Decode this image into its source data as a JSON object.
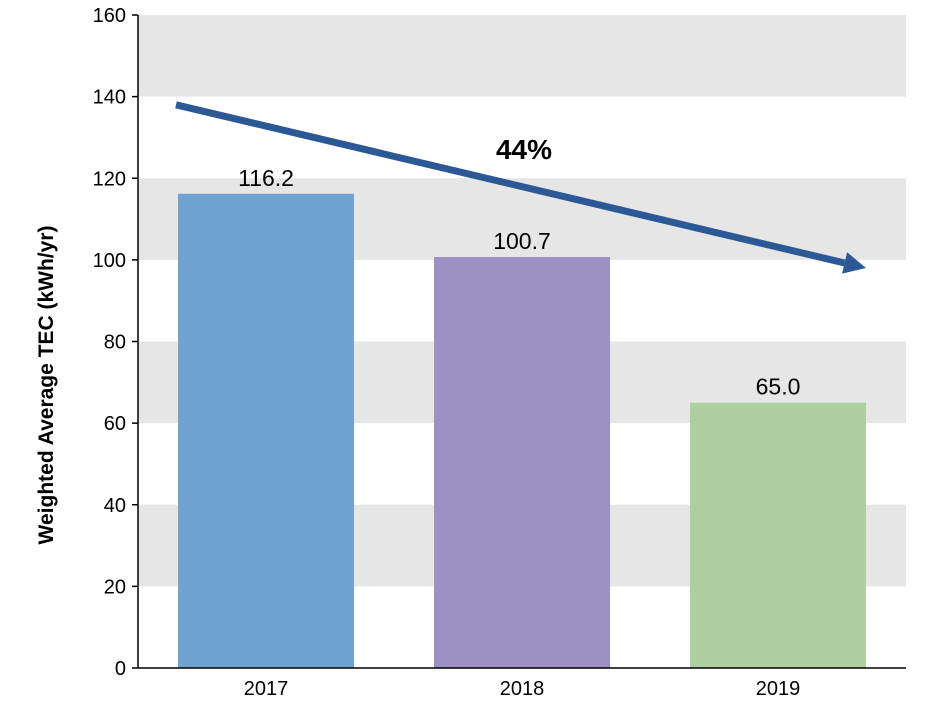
{
  "chart_data": {
    "type": "bar",
    "title": "",
    "xlabel": "",
    "ylabel": "Weighted Average TEC (kWh/yr)",
    "categories": [
      "2017",
      "2018",
      "2019"
    ],
    "values": [
      116.2,
      100.7,
      65.0
    ],
    "value_labels": [
      "116.2",
      "100.7",
      "65.0"
    ],
    "ylim": [
      0,
      160
    ],
    "yticks": [
      0,
      20,
      40,
      60,
      80,
      100,
      120,
      140,
      160
    ],
    "grid": "alternating horizontal bands",
    "colors": [
      "#6fa3d0",
      "#9d90c4",
      "#aecf9f"
    ],
    "band_color": "#e6e6e6",
    "annotation": {
      "label": "44%",
      "arrow_color": "#2c5896",
      "from": {
        "x": 2017,
        "y": 138
      },
      "to": {
        "x": 2019,
        "y": 98
      }
    }
  }
}
